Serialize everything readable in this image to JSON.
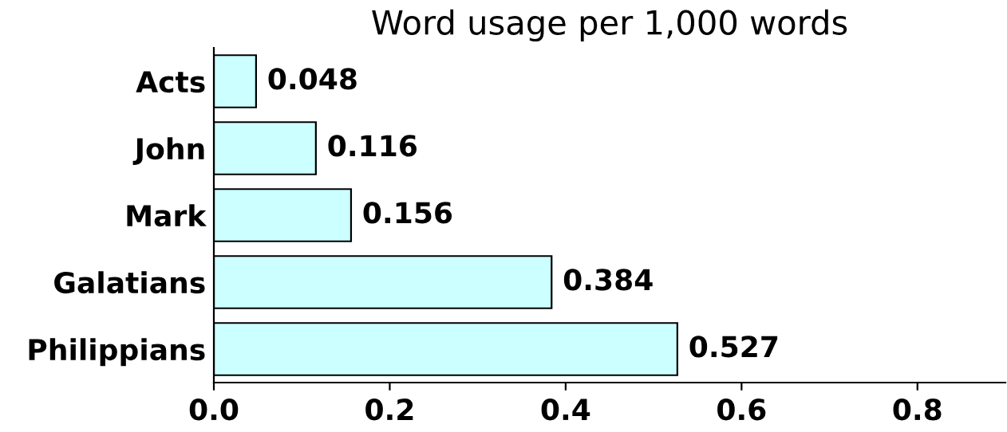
{
  "chart_data": {
    "type": "bar",
    "orientation": "horizontal",
    "title": "Word usage per 1,000 words",
    "categories": [
      "Acts",
      "John",
      "Mark",
      "Galatians",
      "Philippians"
    ],
    "values": [
      0.048,
      0.116,
      0.156,
      0.384,
      0.527
    ],
    "color": "#ccffff",
    "data_labels": true,
    "xlim": [
      0,
      0.9
    ],
    "xticks": [
      {
        "value": 0,
        "label": "0.0"
      },
      0.2,
      0.4,
      0.6,
      0.8
    ],
    "grid": false
  }
}
